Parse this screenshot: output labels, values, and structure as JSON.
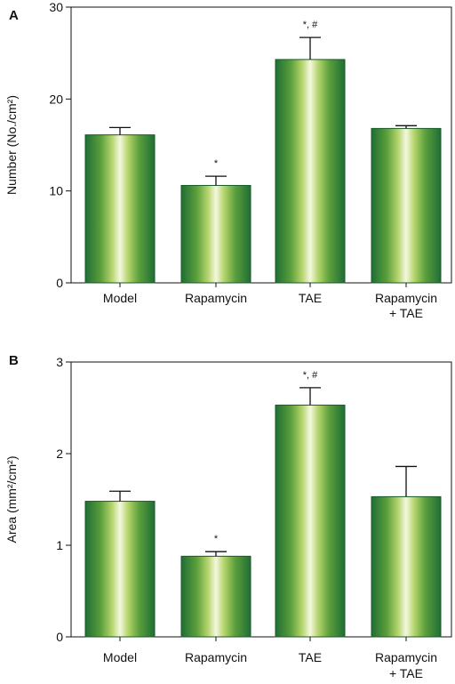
{
  "chart_data": [
    {
      "type": "bar",
      "panel": "A",
      "ylabel": "Number (No./cm²)",
      "ylim": [
        0,
        30
      ],
      "yticks": [
        "0",
        "10",
        "20",
        "30"
      ],
      "categories": [
        [
          "Model"
        ],
        [
          "Rapamycin"
        ],
        [
          "TAE"
        ],
        [
          "Rapamycin",
          "+ TAE"
        ]
      ],
      "values": [
        16.1,
        10.6,
        24.3,
        16.8
      ],
      "errors": [
        0.8,
        1.0,
        2.4,
        0.3
      ],
      "significance": [
        "",
        "*",
        "*, #",
        ""
      ]
    },
    {
      "type": "bar",
      "panel": "B",
      "ylabel": "Area (mm²/cm²)",
      "ylim": [
        0,
        3
      ],
      "yticks": [
        "0",
        "1",
        "2",
        "3"
      ],
      "categories": [
        [
          "Model"
        ],
        [
          "Rapamycin"
        ],
        [
          "TAE"
        ],
        [
          "Rapamycin",
          "+ TAE"
        ]
      ],
      "values": [
        1.48,
        0.88,
        2.53,
        1.53
      ],
      "errors": [
        0.11,
        0.05,
        0.19,
        0.33
      ],
      "significance": [
        "",
        "*",
        "*, #",
        ""
      ]
    }
  ],
  "colors": {
    "bar_edge": "#1f6b33",
    "bar_dark": "#2a7f3f",
    "bar_mid": "#8fc04a",
    "bar_light": "#f4f8df"
  }
}
